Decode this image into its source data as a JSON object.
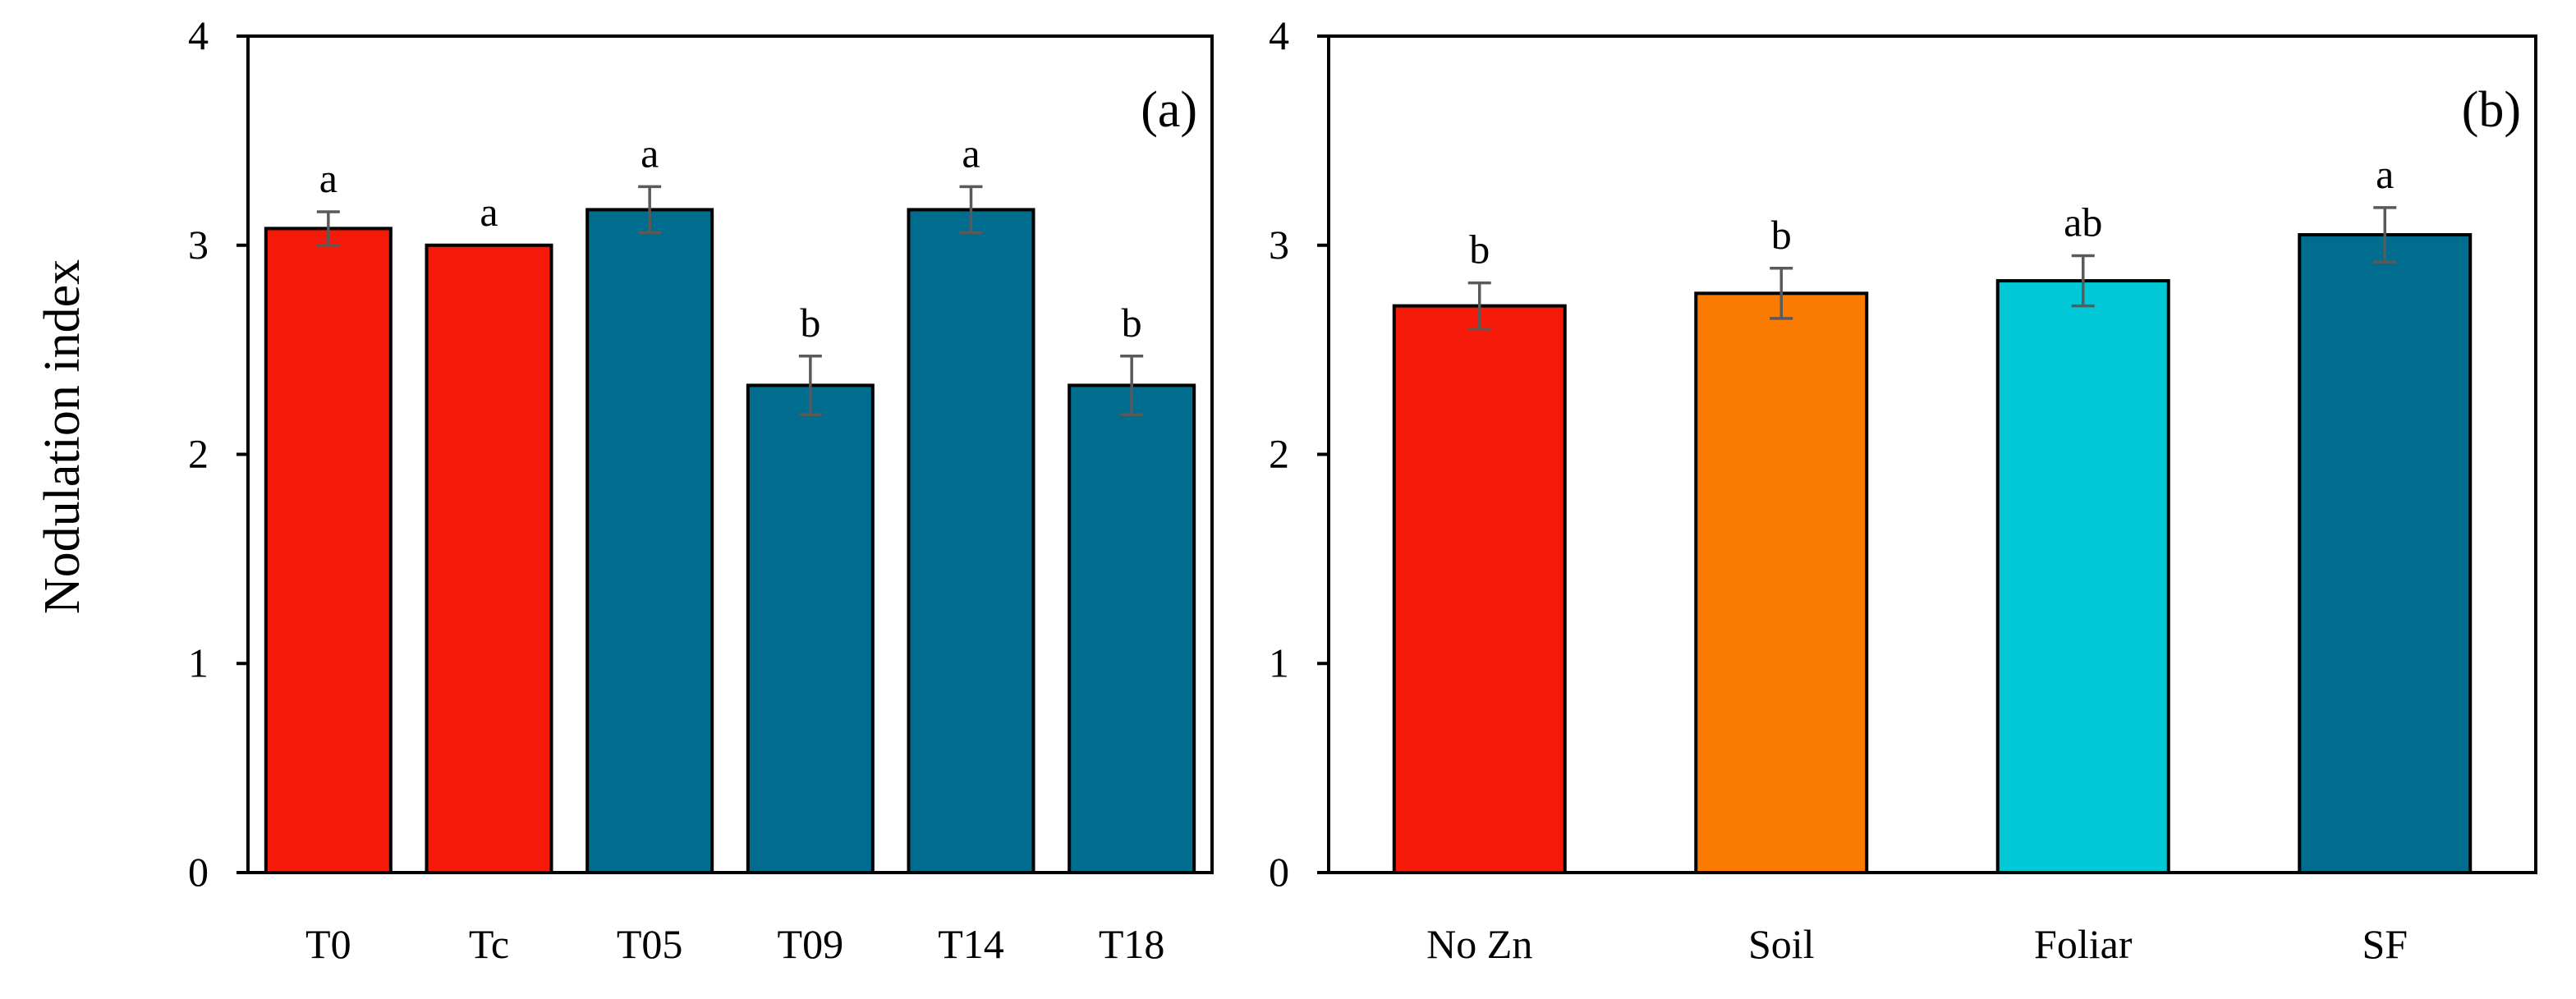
{
  "figure": {
    "ylabel": "Nodulation index"
  },
  "chart_data": [
    {
      "type": "bar",
      "panel_label": "(a)",
      "ylabel": "Nodulation index",
      "xlabel": "",
      "ylim": [
        0,
        4
      ],
      "yticks": [
        0,
        1,
        2,
        3,
        4
      ],
      "ytick_labels": [
        "0",
        "1",
        "2",
        "3",
        "4"
      ],
      "grid": false,
      "categories": [
        "T0",
        "Tc",
        "T05",
        "T09",
        "T14",
        "T18"
      ],
      "values": [
        3.08,
        3.0,
        3.17,
        2.33,
        3.17,
        2.33
      ],
      "errors": [
        0.08,
        0.0,
        0.11,
        0.14,
        0.11,
        0.14
      ],
      "significance": [
        "a",
        "a",
        "a",
        "b",
        "a",
        "b"
      ],
      "colors": [
        "#f5190a",
        "#f5190a",
        "#006d8f",
        "#006d8f",
        "#006d8f",
        "#006d8f"
      ]
    },
    {
      "type": "bar",
      "panel_label": "(b)",
      "ylabel": "",
      "xlabel": "",
      "ylim": [
        0,
        4
      ],
      "yticks": [
        0,
        1,
        2,
        3,
        4
      ],
      "ytick_labels": [
        "0",
        "1",
        "2",
        "3",
        "4"
      ],
      "grid": false,
      "categories": [
        "No Zn",
        "Soil",
        "Foliar",
        "SF"
      ],
      "values": [
        2.71,
        2.77,
        2.83,
        3.05
      ],
      "errors": [
        0.11,
        0.12,
        0.12,
        0.13
      ],
      "significance": [
        "b",
        "b",
        "ab",
        "a"
      ],
      "colors": [
        "#f5190a",
        "#fb7a00",
        "#00c8d7",
        "#006d8f"
      ]
    }
  ]
}
